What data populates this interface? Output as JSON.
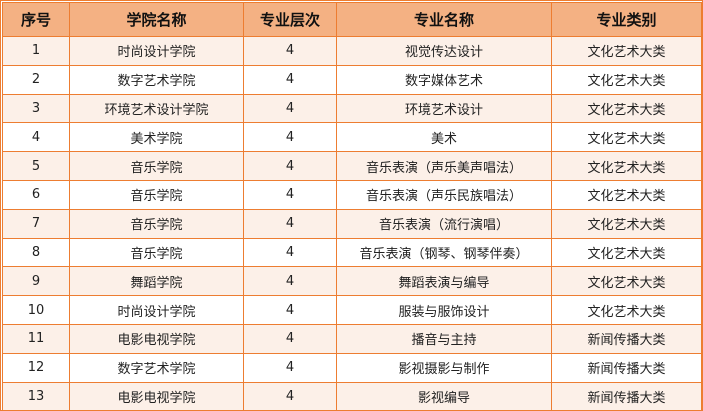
{
  "headers": [
    "序号",
    "学院名称",
    "专业层次",
    "专业名称",
    "专业类别"
  ],
  "rows": [
    [
      "1",
      "时尚设计学院",
      "4",
      "视觉传达设计",
      "文化艺术大类"
    ],
    [
      "2",
      "数字艺术学院",
      "4",
      "数字媒体艺术",
      "文化艺术大类"
    ],
    [
      "3",
      "环境艺术设计学院",
      "4",
      "环境艺术设计",
      "文化艺术大类"
    ],
    [
      "4",
      "美术学院",
      "4",
      "美术",
      "文化艺术大类"
    ],
    [
      "5",
      "音乐学院",
      "4",
      "音乐表演（声乐美声唱法）",
      "文化艺术大类"
    ],
    [
      "6",
      "音乐学院",
      "4",
      "音乐表演（声乐民族唱法）",
      "文化艺术大类"
    ],
    [
      "7",
      "音乐学院",
      "4",
      "音乐表演（流行演唱）",
      "文化艺术大类"
    ],
    [
      "8",
      "音乐学院",
      "4",
      "音乐表演（钢琴、钢琴伴奏）",
      "文化艺术大类"
    ],
    [
      "9",
      "舞蹈学院",
      "4",
      "舞蹈表演与编导",
      "文化艺术大类"
    ],
    [
      "10",
      "时尚设计学院",
      "4",
      "服装与服饰设计",
      "文化艺术大类"
    ],
    [
      "11",
      "电影电视学院",
      "4",
      "播音与主持",
      "新闻传播大类"
    ],
    [
      "12",
      "数字艺术学院",
      "4",
      "影视摄影与制作",
      "新闻传播大类"
    ],
    [
      "13",
      "电影电视学院",
      "4",
      "影视编导",
      "新闻传播大类"
    ]
  ],
  "colors": {
    "border": "#ed7d31",
    "header_bg": "#f4b183",
    "alt_row_bg": "#fcf0e8"
  }
}
